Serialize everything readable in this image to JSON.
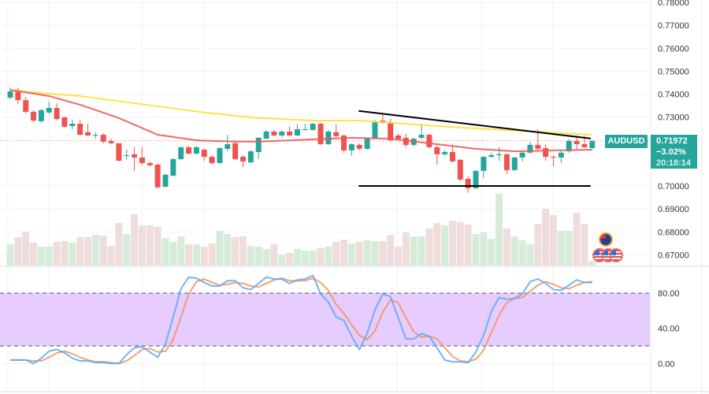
{
  "chart_data": {
    "type": "candlestick",
    "symbol": "AUDUSD",
    "last_price": "0.71972",
    "change_pct": "−3.02%",
    "countdown": "20:18:14",
    "price_axis": {
      "ticks": [
        "0.78000",
        "0.77000",
        "0.76000",
        "0.75000",
        "0.74000",
        "0.73000",
        "0.70000",
        "0.69000",
        "0.68000",
        "0.67000"
      ],
      "range": [
        0.6646,
        0.781
      ]
    },
    "colors": {
      "up": "#26a69a",
      "down": "#ef5350",
      "ma_fast": "#f05a5a",
      "ma_slow": "#ffe033",
      "trendline": "#000000",
      "stoch_k": "#5aa9f5",
      "stoch_d": "#f5925a",
      "stoch_band": "#e6ccff",
      "up_volume": "#d6ecd9",
      "down_volume": "#efdcdc"
    },
    "candles": [
      [
        0.7385,
        0.7429,
        0.7378,
        0.7412
      ],
      [
        0.7416,
        0.7429,
        0.7357,
        0.7374
      ],
      [
        0.7374,
        0.7388,
        0.7316,
        0.7323
      ],
      [
        0.7323,
        0.733,
        0.7278,
        0.7285
      ],
      [
        0.7282,
        0.7337,
        0.7275,
        0.733
      ],
      [
        0.732,
        0.7367,
        0.7313,
        0.734
      ],
      [
        0.734,
        0.7361,
        0.7285,
        0.7292
      ],
      [
        0.7299,
        0.7302,
        0.7254,
        0.7258
      ],
      [
        0.7261,
        0.7289,
        0.7247,
        0.7271
      ],
      [
        0.7271,
        0.7289,
        0.722,
        0.7223
      ],
      [
        0.7234,
        0.7271,
        0.7217,
        0.722
      ],
      [
        0.722,
        0.7234,
        0.7206,
        0.7223
      ],
      [
        0.7223,
        0.723,
        0.7186,
        0.7193
      ],
      [
        0.7196,
        0.7206,
        0.7182,
        0.7186
      ],
      [
        0.7186,
        0.7186,
        0.7107,
        0.711
      ],
      [
        0.7131,
        0.7158,
        0.7114,
        0.7134
      ],
      [
        0.7138,
        0.7169,
        0.7066,
        0.7124
      ],
      [
        0.7124,
        0.7169,
        0.7093,
        0.71
      ],
      [
        0.71,
        0.7107,
        0.7083,
        0.709
      ],
      [
        0.7093,
        0.7097,
        0.699,
        0.6994
      ],
      [
        0.6997,
        0.7052,
        0.6994,
        0.7049
      ],
      [
        0.7045,
        0.7121,
        0.7042,
        0.7117
      ],
      [
        0.7117,
        0.7172,
        0.7114,
        0.7169
      ],
      [
        0.7169,
        0.7172,
        0.7138,
        0.7141
      ],
      [
        0.7141,
        0.7172,
        0.7138,
        0.7169
      ],
      [
        0.7158,
        0.7165,
        0.711,
        0.7127
      ],
      [
        0.7127,
        0.7134,
        0.7093,
        0.71
      ],
      [
        0.71,
        0.7169,
        0.7097,
        0.7165
      ],
      [
        0.7162,
        0.7223,
        0.7151,
        0.7182
      ],
      [
        0.7186,
        0.7189,
        0.7114,
        0.7117
      ],
      [
        0.7127,
        0.7134,
        0.7083,
        0.7107
      ],
      [
        0.7103,
        0.7155,
        0.71,
        0.7151
      ],
      [
        0.7148,
        0.7213,
        0.7117,
        0.721
      ],
      [
        0.7206,
        0.7244,
        0.7203,
        0.7237
      ],
      [
        0.7237,
        0.7244,
        0.7217,
        0.722
      ],
      [
        0.722,
        0.7241,
        0.7213,
        0.7237
      ],
      [
        0.7237,
        0.7261,
        0.7217,
        0.722
      ],
      [
        0.722,
        0.7268,
        0.7217,
        0.7247
      ],
      [
        0.7244,
        0.7271,
        0.7241,
        0.7247
      ],
      [
        0.7244,
        0.7275,
        0.7241,
        0.7271
      ],
      [
        0.7271,
        0.7275,
        0.7179,
        0.7182
      ],
      [
        0.7182,
        0.7244,
        0.7179,
        0.7237
      ],
      [
        0.7234,
        0.7268,
        0.7213,
        0.7217
      ],
      [
        0.722,
        0.7223,
        0.7145,
        0.7155
      ],
      [
        0.7155,
        0.7186,
        0.7131,
        0.7182
      ],
      [
        0.7179,
        0.7186,
        0.7155,
        0.7162
      ],
      [
        0.7162,
        0.721,
        0.7158,
        0.7206
      ],
      [
        0.7206,
        0.7289,
        0.7203,
        0.7278
      ],
      [
        0.7285,
        0.7313,
        0.7271,
        0.7275
      ],
      [
        0.7278,
        0.7292,
        0.7193,
        0.7199
      ],
      [
        0.722,
        0.7227,
        0.7199,
        0.7206
      ],
      [
        0.721,
        0.7227,
        0.7169,
        0.7179
      ],
      [
        0.7179,
        0.721,
        0.7172,
        0.7206
      ],
      [
        0.721,
        0.7271,
        0.7203,
        0.7223
      ],
      [
        0.7223,
        0.7227,
        0.7165,
        0.7169
      ],
      [
        0.7169,
        0.7175,
        0.7093,
        0.7138
      ],
      [
        0.7138,
        0.7155,
        0.7131,
        0.7148
      ],
      [
        0.7148,
        0.7182,
        0.7103,
        0.7107
      ],
      [
        0.7114,
        0.7117,
        0.7021,
        0.7028
      ],
      [
        0.7031,
        0.7042,
        0.697,
        0.699
      ],
      [
        0.699,
        0.7069,
        0.6987,
        0.7066
      ],
      [
        0.7066,
        0.7131,
        0.7035,
        0.7127
      ],
      [
        0.7127,
        0.7145,
        0.7124,
        0.7134
      ],
      [
        0.7134,
        0.7169,
        0.711,
        0.7138
      ],
      [
        0.7138,
        0.7141,
        0.7052,
        0.7069
      ],
      [
        0.7069,
        0.7127,
        0.7066,
        0.7124
      ],
      [
        0.7124,
        0.7151,
        0.7107,
        0.7145
      ],
      [
        0.7145,
        0.7193,
        0.7141,
        0.7179
      ],
      [
        0.7179,
        0.7247,
        0.7148,
        0.7162
      ],
      [
        0.7165,
        0.7182,
        0.711,
        0.7127
      ],
      [
        0.7127,
        0.7134,
        0.7086,
        0.7124
      ],
      [
        0.7124,
        0.7155,
        0.71,
        0.7145
      ],
      [
        0.7151,
        0.7203,
        0.7145,
        0.7196
      ],
      [
        0.7196,
        0.722,
        0.7158,
        0.7182
      ],
      [
        0.7182,
        0.722,
        0.7165,
        0.7169
      ],
      [
        0.7165,
        0.7199,
        0.7162,
        0.7196
      ]
    ],
    "volume": [
      27,
      36,
      43,
      29,
      24,
      24,
      30,
      31,
      29,
      36,
      36,
      39,
      38,
      25,
      54,
      40,
      65,
      51,
      51,
      49,
      35,
      30,
      37,
      27,
      27,
      24,
      28,
      44,
      40,
      36,
      37,
      25,
      24,
      21,
      27,
      14,
      16,
      21,
      19,
      19,
      22,
      24,
      30,
      33,
      28,
      30,
      32,
      31,
      31,
      39,
      24,
      42,
      37,
      37,
      47,
      54,
      51,
      57,
      55,
      52,
      40,
      42,
      34,
      91,
      47,
      37,
      32,
      27,
      53,
      72,
      64,
      44,
      44,
      67,
      53,
      6
    ],
    "ma_slow": [
      [
        0,
        0.7416
      ],
      [
        9,
        0.7392
      ],
      [
        19,
        0.7347
      ],
      [
        25,
        0.732
      ],
      [
        32,
        0.7296
      ],
      [
        39,
        0.7285
      ],
      [
        45,
        0.7285
      ],
      [
        55,
        0.7261
      ],
      [
        65,
        0.7241
      ],
      [
        75,
        0.7223
      ]
    ],
    "ma_fast": [
      [
        0,
        0.7419
      ],
      [
        5,
        0.7392
      ],
      [
        9,
        0.7354
      ],
      [
        14,
        0.7296
      ],
      [
        19,
        0.7223
      ],
      [
        24,
        0.7199
      ],
      [
        29,
        0.7193
      ],
      [
        32,
        0.7193
      ],
      [
        39,
        0.7203
      ],
      [
        44,
        0.721
      ],
      [
        49,
        0.7206
      ],
      [
        55,
        0.7182
      ],
      [
        60,
        0.7162
      ],
      [
        65,
        0.7151
      ],
      [
        70,
        0.7155
      ],
      [
        75,
        0.7158
      ]
    ],
    "trendlines": [
      {
        "name": "descending-resistance",
        "from": [
          44.9,
          0.7327
        ],
        "to": [
          74.8,
          0.7207
        ]
      },
      {
        "name": "horizontal-support",
        "from": [
          44.9,
          0.7
        ],
        "to": [
          74.8,
          0.7
        ]
      }
    ],
    "stochastic": {
      "ticks": [
        "80.00",
        "40.00",
        "0.00"
      ],
      "band": [
        20,
        80
      ],
      "k": [
        4,
        4,
        4,
        0,
        6,
        14,
        16,
        12,
        6,
        3,
        3,
        1,
        1,
        0,
        0,
        10,
        18,
        19,
        13,
        7,
        22,
        53,
        85,
        98,
        97,
        92,
        88,
        88,
        94,
        94,
        86,
        84,
        91,
        98,
        96,
        96,
        91,
        95,
        96,
        100,
        79,
        70,
        53,
        49,
        31,
        16,
        34,
        61,
        79,
        76,
        52,
        28,
        28,
        34,
        31,
        18,
        4,
        2,
        2,
        1,
        13,
        32,
        59,
        75,
        73,
        74,
        79,
        93,
        96,
        91,
        84,
        83,
        89,
        95,
        92,
        92
      ],
      "d": [
        4,
        4,
        4,
        3,
        3,
        7,
        12,
        14,
        11,
        7,
        4,
        2,
        2,
        1,
        0,
        3,
        9,
        16,
        17,
        13,
        14,
        27,
        53,
        79,
        93,
        96,
        92,
        89,
        90,
        92,
        91,
        88,
        87,
        91,
        95,
        97,
        94,
        94,
        94,
        97,
        92,
        83,
        67,
        57,
        44,
        32,
        27,
        37,
        58,
        72,
        69,
        52,
        36,
        30,
        31,
        28,
        18,
        8,
        3,
        2,
        5,
        15,
        35,
        55,
        69,
        74,
        75,
        82,
        89,
        93,
        90,
        86,
        85,
        89,
        92,
        93
      ]
    }
  }
}
